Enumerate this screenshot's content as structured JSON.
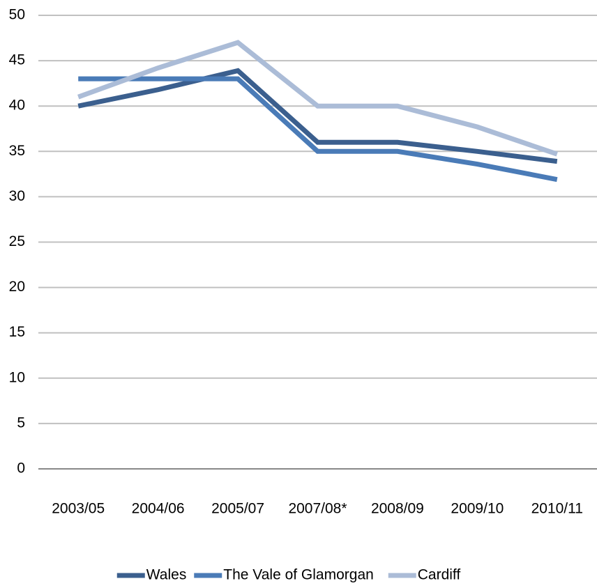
{
  "chart_data": {
    "type": "line",
    "categories": [
      "2003/05",
      "2004/06",
      "2005/07",
      "2007/08*",
      "2008/09",
      "2009/10",
      "2010/11"
    ],
    "series": [
      {
        "name": "Wales",
        "color": "#3b5f8e",
        "values": [
          40,
          41.8,
          43.9,
          36,
          36,
          35,
          33.9
        ]
      },
      {
        "name": "The Vale of Glamorgan",
        "color": "#4a7bb7",
        "values": [
          43,
          43,
          43,
          35,
          35,
          33.6,
          31.9
        ]
      },
      {
        "name": "Cardiff",
        "color": "#abbcd7",
        "values": [
          41,
          44.2,
          47,
          40,
          40,
          37.7,
          34.7
        ]
      }
    ],
    "ylim": [
      0,
      50
    ],
    "yticks": [
      0,
      5,
      10,
      15,
      20,
      25,
      30,
      35,
      40,
      45,
      50
    ],
    "grid": true,
    "legend": "bottom"
  }
}
